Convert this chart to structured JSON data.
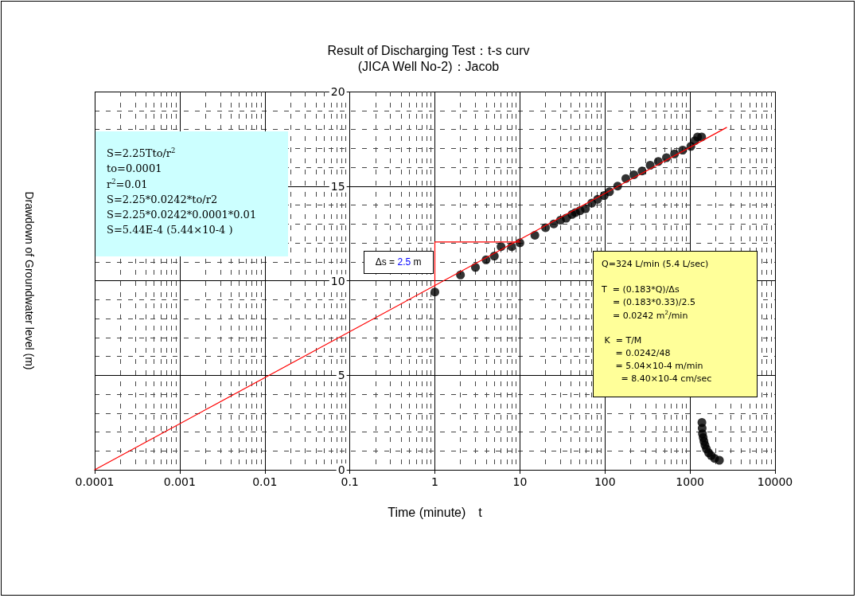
{
  "chart_data": {
    "type": "scatter",
    "title": "Result of Discharging Test：t-s curv",
    "subtitle": "(JICA Well No-2)：Jacob",
    "xlabel": "Time (minute)　t",
    "ylabel": "Drawdown of Groundwater level (m)",
    "log": "x",
    "grid": true,
    "xlim": [
      0.0001,
      10000
    ],
    "xticks": [
      0.0001,
      0.001,
      0.01,
      0.1,
      1,
      10,
      100,
      1000,
      10000
    ],
    "ylim": [
      0,
      20
    ],
    "yticks": [
      0,
      5,
      10,
      15,
      20
    ],
    "series": [
      {
        "color": "#000000",
        "marker": "circle",
        "x": [
          1,
          2,
          3,
          4,
          5,
          6,
          8,
          10,
          15,
          20,
          25,
          30,
          35,
          41,
          45,
          51,
          59,
          70,
          82,
          98,
          113,
          141,
          176,
          219,
          273,
          340,
          424,
          528,
          658,
          820,
          1023,
          1140,
          1227,
          1370,
          1380,
          1390,
          1400,
          1429,
          1460,
          1500,
          1560,
          1655,
          1780,
          1950,
          2218
        ],
        "values": [
          9.4,
          10.3,
          10.7,
          11.1,
          11.3,
          11.8,
          11.8,
          12.0,
          12.4,
          12.8,
          13.0,
          13.2,
          13.3,
          13.5,
          13.6,
          13.7,
          13.8,
          14.1,
          14.3,
          14.5,
          14.7,
          15.0,
          15.4,
          15.6,
          15.8,
          16.1,
          16.3,
          16.5,
          16.7,
          16.9,
          17.1,
          17.4,
          17.6,
          17.6,
          2.5,
          2.2,
          1.9,
          1.7,
          1.5,
          1.3,
          1.1,
          0.9,
          0.75,
          0.6,
          0.5
        ]
      },
      {
        "type": "line",
        "color": "#ff0000",
        "marker": "none",
        "x": [
          0.0001,
          2690
        ],
        "values": [
          0,
          18.1
        ]
      },
      {
        "type": "line",
        "color": "#ff0000",
        "marker": "none",
        "x": [
          1,
          1,
          10
        ],
        "values": [
          9.7,
          12.05,
          12.05
        ]
      }
    ],
    "annotations": [
      "S=2.25Tto/r$^{2}$\nto=0.0001\nr$^{2}$=0.01\nS=2.25*0.0242*to/r2\nS=2.25*0.0242*0.0001*0.01\nS=5.44E-4 (5.44×10-4 )",
      "Q=324 L/min (5.4 L/sec)\n\nT  = (0.183*Q)/Δs\n    = (0.183*0.33)/2.5\n    = 0.0242 m$^{2}$/min\n\n K  = T/M\n     = 0.0242/48\n     = 5.04×10-4 m/min\n       = 8.40×10-4 cm/sec",
      {
        "text": "Δs = 2.5 m",
        "x": 1,
        "y": 11
      }
    ]
  }
}
